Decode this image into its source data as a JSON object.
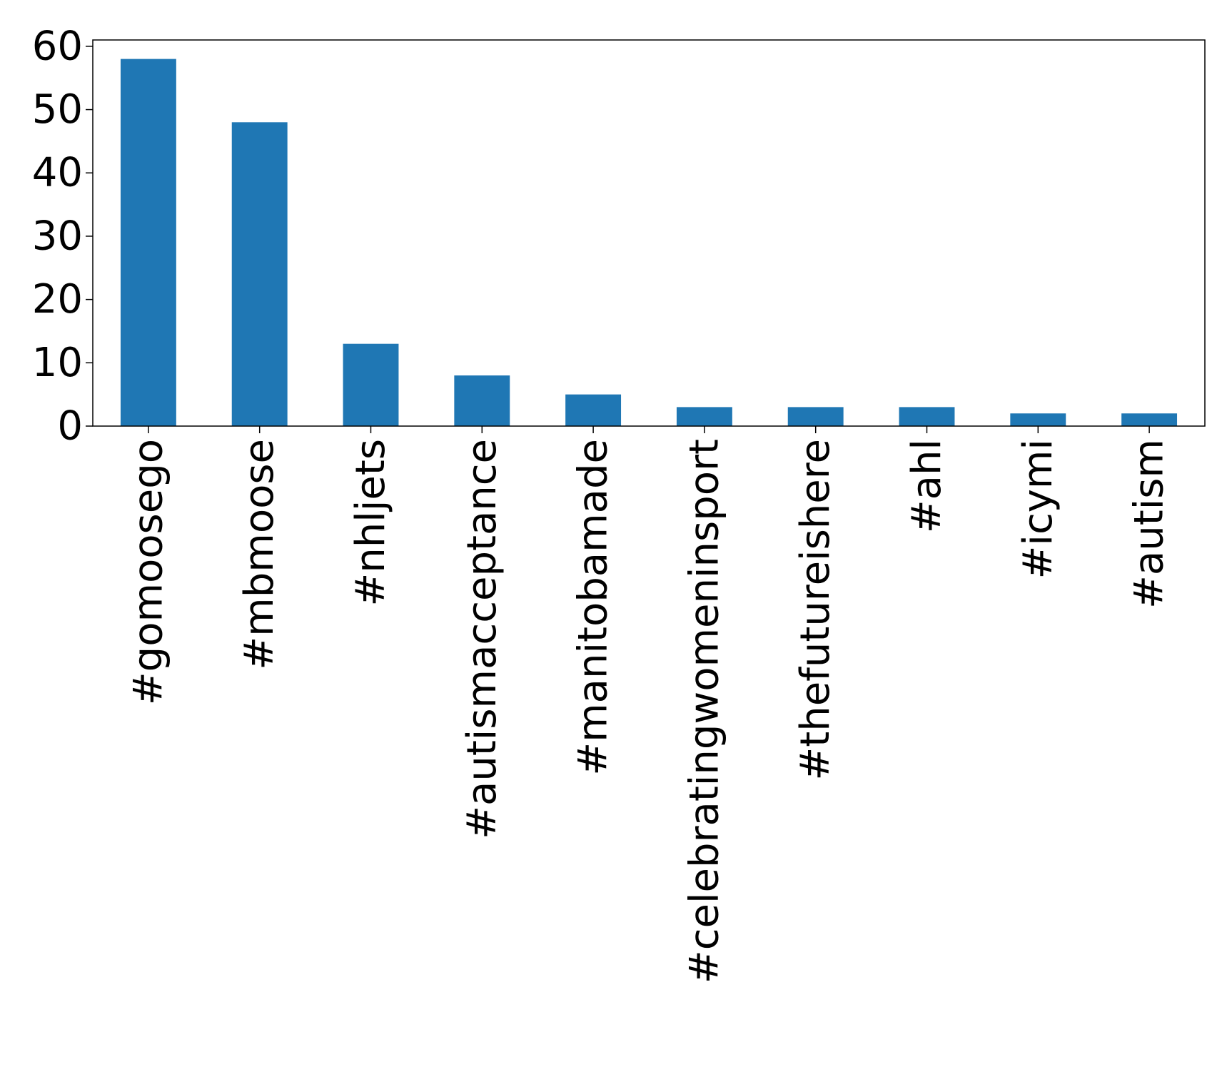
{
  "chart_data": {
    "type": "bar",
    "title": "",
    "xlabel": "",
    "ylabel": "",
    "categories": [
      "#gomoosego",
      "#mbmoose",
      "#nhljets",
      "#autismacceptance",
      "#manitobamade",
      "#celebratingwomeninsport",
      "#thefutureishere",
      "#ahl",
      "#icymi",
      "#autism"
    ],
    "values": [
      58,
      48,
      13,
      8,
      5,
      3,
      3,
      3,
      2,
      2
    ],
    "ylim": [
      0,
      61
    ],
    "yticks": [
      0,
      10,
      20,
      30,
      40,
      50,
      60
    ],
    "grid": false,
    "legend": "none",
    "bar_color": "#1f77b4"
  }
}
